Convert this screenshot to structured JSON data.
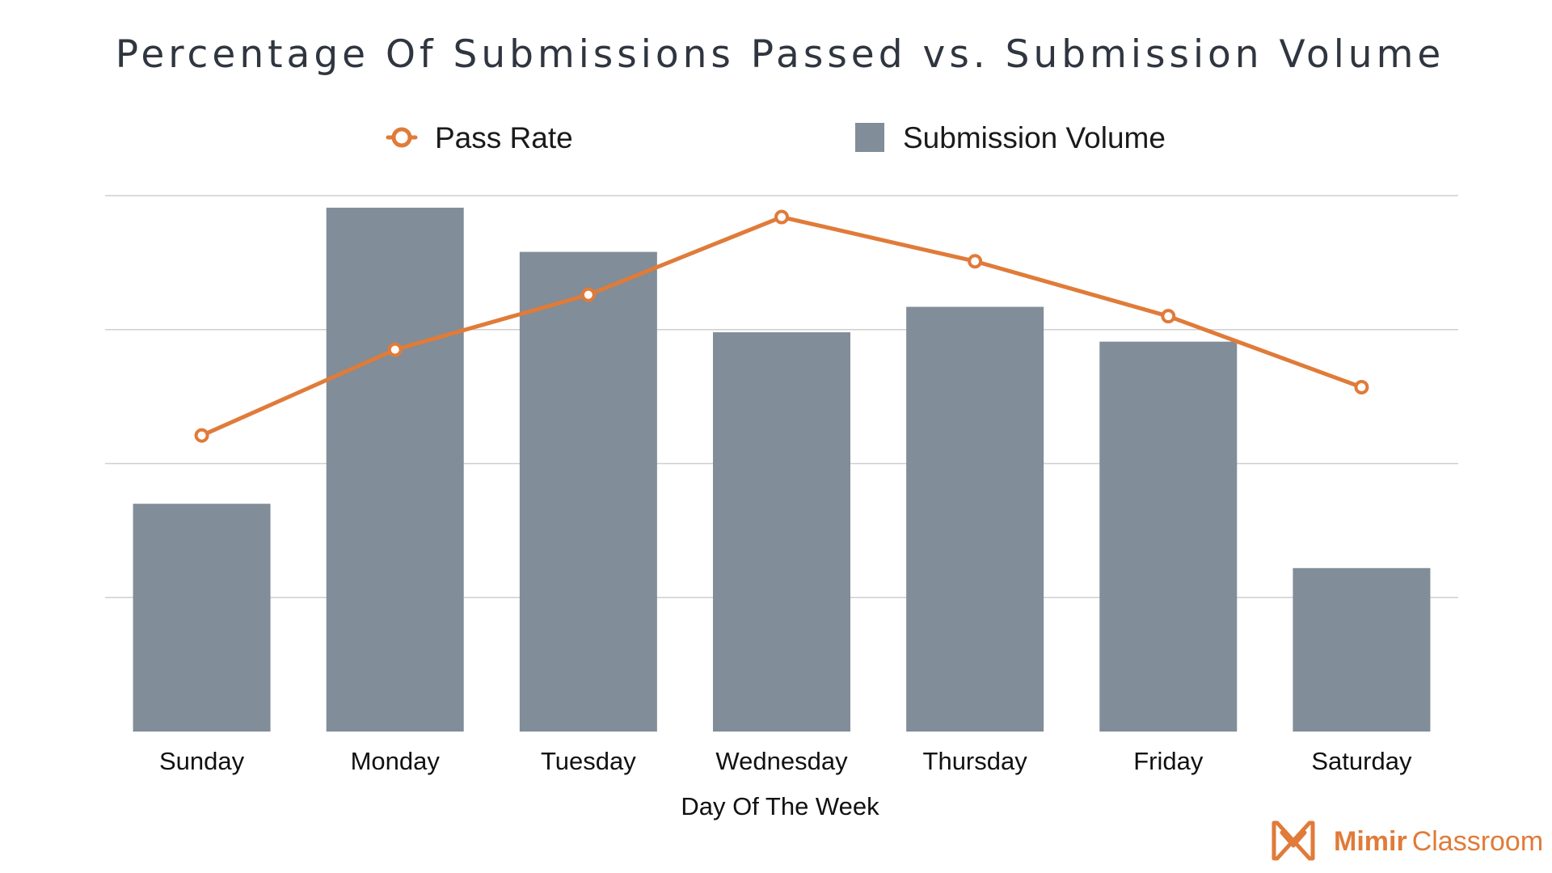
{
  "chart_data": {
    "type": "bar",
    "title": "Percentage Of Submissions Passed vs. Submission Volume",
    "xlabel": "Day Of The Week",
    "ylabel": "",
    "categories": [
      "Sunday",
      "Monday",
      "Tuesday",
      "Wednesday",
      "Thursday",
      "Friday",
      "Saturday"
    ],
    "series": [
      {
        "name": "Submission Volume",
        "kind": "bar",
        "color": "#818d98",
        "values": [
          1.7,
          3.91,
          3.58,
          2.98,
          3.17,
          2.91,
          1.22
        ]
      },
      {
        "name": "Pass Rate",
        "kind": "line",
        "color": "#e07b39",
        "values": [
          2.21,
          2.85,
          3.26,
          3.84,
          3.51,
          3.1,
          2.57
        ]
      }
    ],
    "ylim": [
      0,
      4
    ],
    "y_gridlines": [
      1,
      2,
      3,
      4
    ],
    "y_tick_labels_shown": false,
    "grid": true,
    "legend_position": "top-center"
  },
  "branding": {
    "name_bold": "Mimir",
    "name_light": "Classroom",
    "icon": "mimir-logo-icon",
    "color": "#e07b39"
  }
}
